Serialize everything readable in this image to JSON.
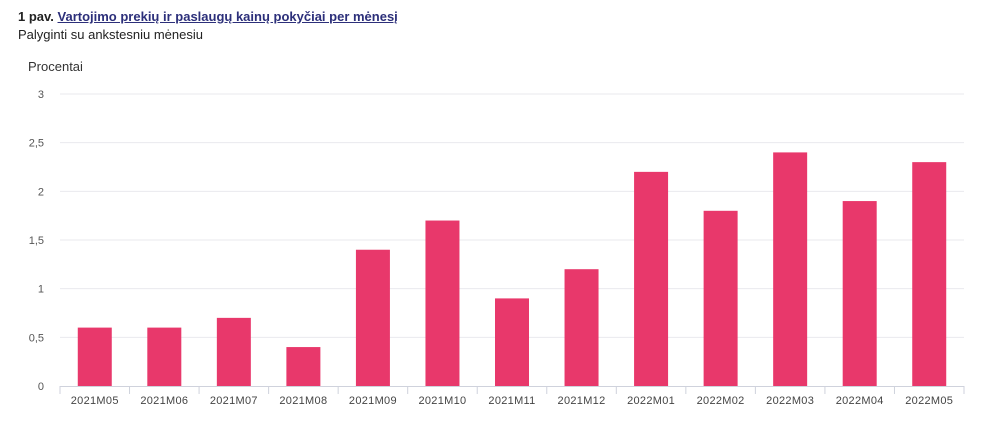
{
  "header": {
    "prefix": "1 pav.",
    "link_text": "Vartojimo prekių ir paslaugų kainų pokyčiai per mėnesį",
    "subtitle": "Palyginti su ankstesniu mėnesiu"
  },
  "colors": {
    "bar": "#e8386b",
    "grid": "#e9e9ee",
    "axis": "#cfd2dc"
  },
  "chart_data": {
    "type": "bar",
    "title": "Vartojimo prekių ir paslaugų kainų pokyčiai per mėnesį",
    "subtitle": "Palyginti su ankstesniu mėnesiu",
    "ylabel": "Procentai",
    "xlabel": "",
    "categories": [
      "2021M05",
      "2021M06",
      "2021M07",
      "2021M08",
      "2021M09",
      "2021M10",
      "2021M11",
      "2021M12",
      "2022M01",
      "2022M02",
      "2022M03",
      "2022M04",
      "2022M05"
    ],
    "values": [
      0.6,
      0.6,
      0.7,
      0.4,
      1.4,
      1.7,
      0.9,
      1.2,
      2.2,
      1.8,
      2.4,
      1.9,
      2.3
    ],
    "ylim": [
      0,
      3
    ],
    "yticks": [
      "0",
      "0,5",
      "1",
      "1,5",
      "2",
      "2,5",
      "3"
    ],
    "grid": true,
    "legend": "none"
  }
}
